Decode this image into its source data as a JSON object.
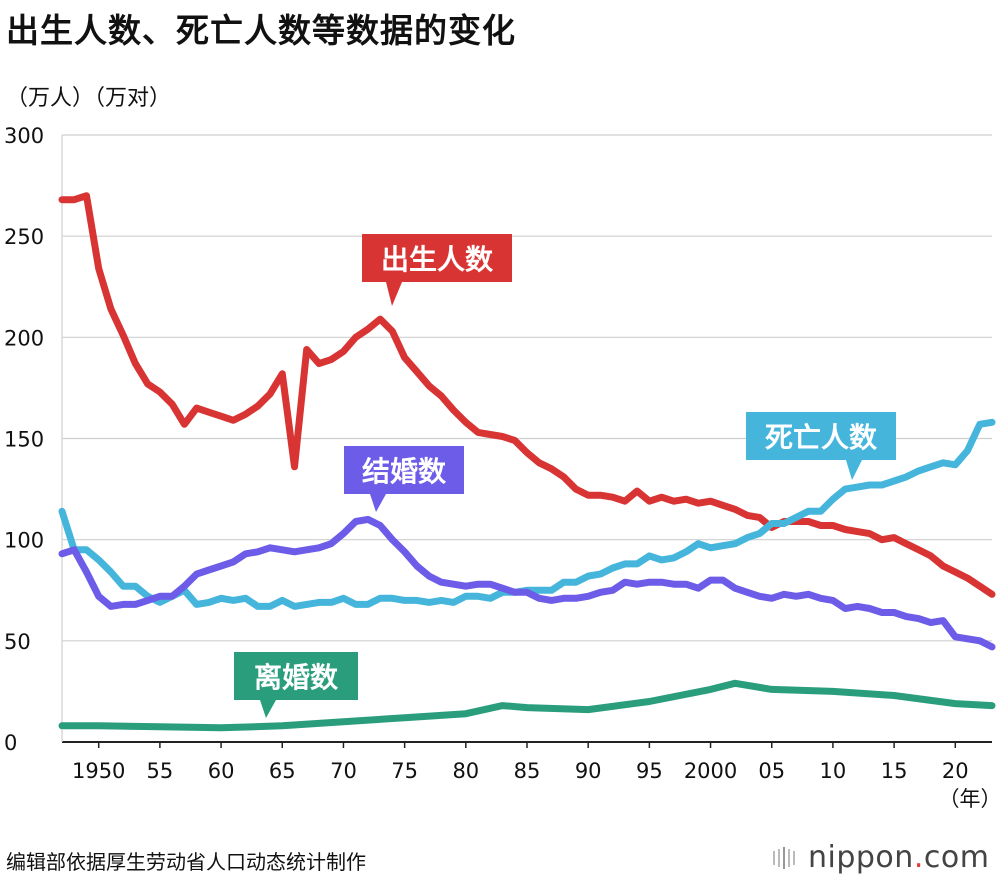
{
  "title": "出生人数、死亡人数等数据的变化",
  "units_label": "（万人）（万对）",
  "source": "编辑部依据厚生劳动省人口动态统计制作",
  "logo": {
    "text": "nippon",
    "dot": ".",
    "suffix": "com"
  },
  "chart_data": {
    "type": "line",
    "xlim": [
      1947,
      2023
    ],
    "ylim": [
      0,
      300
    ],
    "y_ticks": [
      0,
      50,
      100,
      150,
      200,
      250,
      300
    ],
    "x_ticks": [
      {
        "x": 1950,
        "label": "1950"
      },
      {
        "x": 1955,
        "label": "55"
      },
      {
        "x": 1960,
        "label": "60"
      },
      {
        "x": 1965,
        "label": "65"
      },
      {
        "x": 1970,
        "label": "70"
      },
      {
        "x": 1975,
        "label": "75"
      },
      {
        "x": 1980,
        "label": "80"
      },
      {
        "x": 1985,
        "label": "85"
      },
      {
        "x": 1990,
        "label": "90"
      },
      {
        "x": 1995,
        "label": "95"
      },
      {
        "x": 2000,
        "label": "2000"
      },
      {
        "x": 2005,
        "label": "05"
      },
      {
        "x": 2010,
        "label": "10"
      },
      {
        "x": 2015,
        "label": "15"
      },
      {
        "x": 2020,
        "label": "20"
      }
    ],
    "xlabel": "（年）",
    "grid": true,
    "series": [
      {
        "name": "出生人数",
        "color": "#d93434",
        "x": [
          1947,
          1948,
          1949,
          1950,
          1951,
          1952,
          1953,
          1954,
          1955,
          1956,
          1957,
          1958,
          1959,
          1960,
          1961,
          1962,
          1963,
          1964,
          1965,
          1966,
          1967,
          1968,
          1969,
          1970,
          1971,
          1972,
          1973,
          1974,
          1975,
          1976,
          1977,
          1978,
          1979,
          1980,
          1981,
          1982,
          1983,
          1984,
          1985,
          1986,
          1987,
          1988,
          1989,
          1990,
          1991,
          1992,
          1993,
          1994,
          1995,
          1996,
          1997,
          1998,
          1999,
          2000,
          2001,
          2002,
          2003,
          2004,
          2005,
          2006,
          2007,
          2008,
          2009,
          2010,
          2011,
          2012,
          2013,
          2014,
          2015,
          2016,
          2017,
          2018,
          2019,
          2020,
          2021,
          2022,
          2023
        ],
        "y": [
          268,
          268,
          270,
          234,
          214,
          201,
          187,
          177,
          173,
          167,
          157,
          165,
          163,
          161,
          159,
          162,
          166,
          172,
          182,
          136,
          194,
          187,
          189,
          193,
          200,
          204,
          209,
          203,
          190,
          183,
          176,
          171,
          164,
          158,
          153,
          152,
          151,
          149,
          143,
          138,
          135,
          131,
          125,
          122,
          122,
          121,
          119,
          124,
          119,
          121,
          119,
          120,
          118,
          119,
          117,
          115,
          112,
          111,
          106,
          109,
          109,
          109,
          107,
          107,
          105,
          104,
          103,
          100,
          101,
          98,
          95,
          92,
          87,
          84,
          81,
          77,
          73
        ]
      },
      {
        "name": "死亡人数",
        "color": "#45b5dc",
        "x": [
          1947,
          1948,
          1949,
          1950,
          1951,
          1952,
          1953,
          1954,
          1955,
          1956,
          1957,
          1958,
          1959,
          1960,
          1961,
          1962,
          1963,
          1964,
          1965,
          1966,
          1967,
          1968,
          1969,
          1970,
          1971,
          1972,
          1973,
          1974,
          1975,
          1976,
          1977,
          1978,
          1979,
          1980,
          1981,
          1982,
          1983,
          1984,
          1985,
          1986,
          1987,
          1988,
          1989,
          1990,
          1991,
          1992,
          1993,
          1994,
          1995,
          1996,
          1997,
          1998,
          1999,
          2000,
          2001,
          2002,
          2003,
          2004,
          2005,
          2006,
          2007,
          2008,
          2009,
          2010,
          2011,
          2012,
          2013,
          2014,
          2015,
          2016,
          2017,
          2018,
          2019,
          2020,
          2021,
          2022,
          2023
        ],
        "y": [
          114,
          95,
          95,
          90,
          84,
          77,
          77,
          72,
          69,
          72,
          75,
          68,
          69,
          71,
          70,
          71,
          67,
          67,
          70,
          67,
          68,
          69,
          69,
          71,
          68,
          68,
          71,
          71,
          70,
          70,
          69,
          70,
          69,
          72,
          72,
          71,
          74,
          74,
          75,
          75,
          75,
          79,
          79,
          82,
          83,
          86,
          88,
          88,
          92,
          90,
          91,
          94,
          98,
          96,
          97,
          98,
          101,
          103,
          108,
          108,
          111,
          114,
          114,
          120,
          125,
          126,
          127,
          127,
          129,
          131,
          134,
          136,
          138,
          137,
          144,
          157,
          158
        ]
      },
      {
        "name": "结婚数",
        "color": "#6c5ce7",
        "x": [
          1947,
          1948,
          1949,
          1950,
          1951,
          1952,
          1953,
          1954,
          1955,
          1956,
          1957,
          1958,
          1959,
          1960,
          1961,
          1962,
          1963,
          1964,
          1965,
          1966,
          1967,
          1968,
          1969,
          1970,
          1971,
          1972,
          1973,
          1974,
          1975,
          1976,
          1977,
          1978,
          1979,
          1980,
          1981,
          1982,
          1983,
          1984,
          1985,
          1986,
          1987,
          1988,
          1989,
          1990,
          1991,
          1992,
          1993,
          1994,
          1995,
          1996,
          1997,
          1998,
          1999,
          2000,
          2001,
          2002,
          2003,
          2004,
          2005,
          2006,
          2007,
          2008,
          2009,
          2010,
          2011,
          2012,
          2013,
          2014,
          2015,
          2016,
          2017,
          2018,
          2019,
          2020,
          2021,
          2022,
          2023
        ],
        "y": [
          93,
          95,
          84,
          72,
          67,
          68,
          68,
          70,
          72,
          72,
          77,
          83,
          85,
          87,
          89,
          93,
          94,
          96,
          95,
          94,
          95,
          96,
          98,
          103,
          109,
          110,
          107,
          100,
          94,
          87,
          82,
          79,
          78,
          77,
          78,
          78,
          76,
          74,
          74,
          71,
          70,
          71,
          71,
          72,
          74,
          75,
          79,
          78,
          79,
          79,
          78,
          78,
          76,
          80,
          80,
          76,
          74,
          72,
          71,
          73,
          72,
          73,
          71,
          70,
          66,
          67,
          66,
          64,
          64,
          62,
          61,
          59,
          60,
          52,
          51,
          50,
          47
        ]
      },
      {
        "name": "离婚数",
        "color": "#2a9e7c",
        "x": [
          1947,
          1950,
          1955,
          1960,
          1965,
          1970,
          1975,
          1980,
          1983,
          1985,
          1990,
          1995,
          2000,
          2002,
          2005,
          2010,
          2015,
          2020,
          2023
        ],
        "y": [
          8,
          8,
          7.5,
          7,
          8,
          10,
          12,
          14,
          18,
          17,
          16,
          20,
          26,
          29,
          26,
          25,
          23,
          19,
          18
        ]
      }
    ],
    "callouts": [
      {
        "series": "出生人数",
        "label": "出生人数"
      },
      {
        "series": "死亡人数",
        "label": "死亡人数"
      },
      {
        "series": "结婚数",
        "label": "结婚数"
      },
      {
        "series": "离婚数",
        "label": "离婚数"
      }
    ]
  }
}
